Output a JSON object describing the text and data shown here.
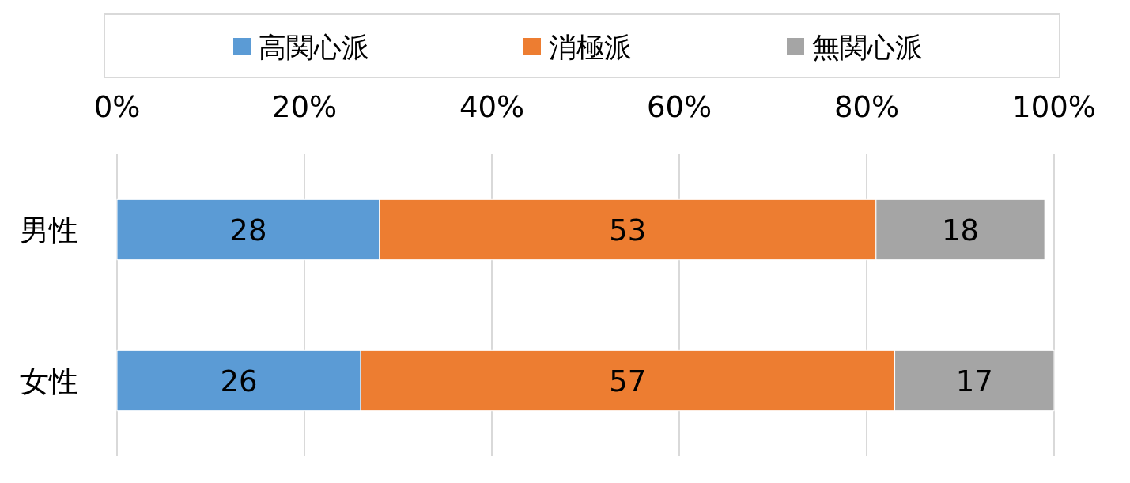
{
  "chart_data": {
    "type": "bar",
    "orientation": "horizontal",
    "stacked": true,
    "categories": [
      "男性",
      "女性"
    ],
    "series": [
      {
        "name": "高関心派",
        "color": "#5b9bd5",
        "values": [
          28,
          26
        ]
      },
      {
        "name": "消極派",
        "color": "#ed7d31",
        "values": [
          53,
          57
        ]
      },
      {
        "name": "無関心派",
        "color": "#a5a5a5",
        "values": [
          18,
          17
        ]
      }
    ],
    "xlim": [
      0,
      100
    ],
    "xticks": [
      {
        "value": 0,
        "label": "0%"
      },
      {
        "value": 20,
        "label": "20%"
      },
      {
        "value": 40,
        "label": "40%"
      },
      {
        "value": 60,
        "label": "60%"
      },
      {
        "value": 80,
        "label": "80%"
      },
      {
        "value": 100,
        "label": "100%"
      }
    ],
    "grid": "x",
    "legend": "top",
    "data_labels": true
  }
}
